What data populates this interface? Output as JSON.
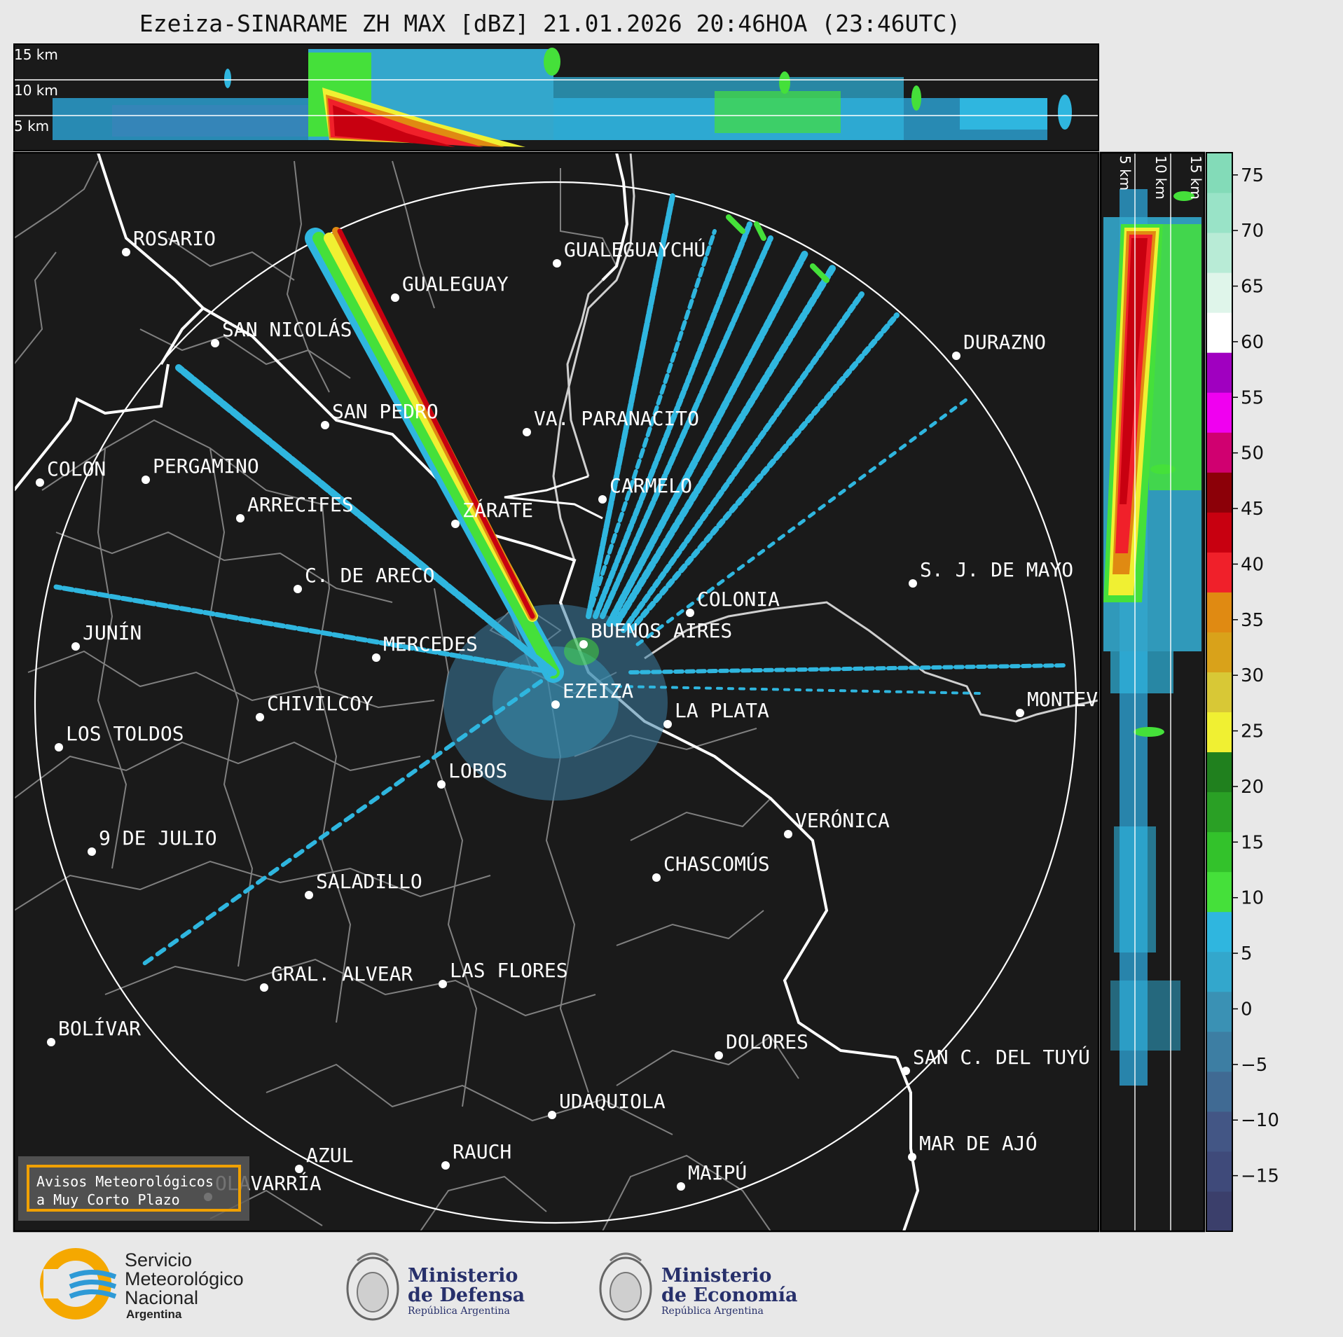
{
  "title": "Ezeiza-SINARAME ZH MAX [dBZ] 21.01.2026 20:46HOA (23:46UTC)",
  "top_panel_heights": [
    "15 km",
    "10 km",
    "5 km"
  ],
  "side_panel_heights": [
    "5 km",
    "10 km",
    "15 km"
  ],
  "colorbar": {
    "ticks": [
      "75",
      "70",
      "65",
      "60",
      "55",
      "50",
      "45",
      "40",
      "35",
      "30",
      "25",
      "20",
      "15",
      "10",
      "5",
      "0",
      "−5",
      "−10",
      "−15"
    ],
    "colors": [
      "#3b3f6b",
      "#3f4a7a",
      "#435685",
      "#406a93",
      "#3d7ea3",
      "#3a91b4",
      "#33a7cc",
      "#2fb6df",
      "#45e03a",
      "#33c22b",
      "#2aa025",
      "#20801e",
      "#f0f032",
      "#d8c836",
      "#d9a21a",
      "#e08a12",
      "#f0202a",
      "#c80010",
      "#8c0008",
      "#d00070",
      "#f000f0",
      "#a000c0",
      "#ffffff",
      "#dff5ea",
      "#b8ebd6",
      "#99e3c7",
      "#83dbb8"
    ]
  },
  "cities": [
    {
      "name": "ROSARIO"
    },
    {
      "name": "GUALEGUAYCHÚ"
    },
    {
      "name": "GUALEGUAY"
    },
    {
      "name": "SAN NICOLÁS"
    },
    {
      "name": "DURAZNO"
    },
    {
      "name": "SAN PEDRO"
    },
    {
      "name": "VA. PARANACITO"
    },
    {
      "name": "COLON"
    },
    {
      "name": "PERGAMINO"
    },
    {
      "name": "CARMELO"
    },
    {
      "name": "ARRECIFES"
    },
    {
      "name": "ZÁRATE"
    },
    {
      "name": "S. J. DE MAYO"
    },
    {
      "name": "C. DE ARECO"
    },
    {
      "name": "COLONIA"
    },
    {
      "name": "JUNÍN"
    },
    {
      "name": "BUENOS AIRES"
    },
    {
      "name": "MERCEDES"
    },
    {
      "name": "EZEIZA"
    },
    {
      "name": "MONTEVIDEO"
    },
    {
      "name": "CHIVILCOY"
    },
    {
      "name": "LA PLATA"
    },
    {
      "name": "LOS TOLDOS"
    },
    {
      "name": "LOBOS"
    },
    {
      "name": "VERÓNICA"
    },
    {
      "name": "9 DE JULIO"
    },
    {
      "name": "CHASCOMÚS"
    },
    {
      "name": "SALADILLO"
    },
    {
      "name": "GRAL. ALVEAR"
    },
    {
      "name": "LAS FLORES"
    },
    {
      "name": "BOLÍVAR"
    },
    {
      "name": "DOLORES"
    },
    {
      "name": "SAN C. DEL TUYÚ"
    },
    {
      "name": "UDAQUIOLA"
    },
    {
      "name": "MAR DE AJÓ"
    },
    {
      "name": "AZUL"
    },
    {
      "name": "RAUCH"
    },
    {
      "name": "OLAVARRÍA"
    },
    {
      "name": "MAIPÚ"
    }
  ],
  "alert_box": {
    "line1": "Avisos Meteorológicos",
    "line2": "a Muy Corto Plazo"
  },
  "logos": {
    "smn": {
      "line1": "Servicio",
      "line2": "Meteorológico",
      "line3": "Nacional",
      "line4": "Argentina"
    },
    "defensa": {
      "line1": "Ministerio",
      "line2": "de Defensa",
      "line3": "República Argentina"
    },
    "economia": {
      "line1": "Ministerio",
      "line2": "de Economía",
      "line3": "República Argentina"
    }
  }
}
